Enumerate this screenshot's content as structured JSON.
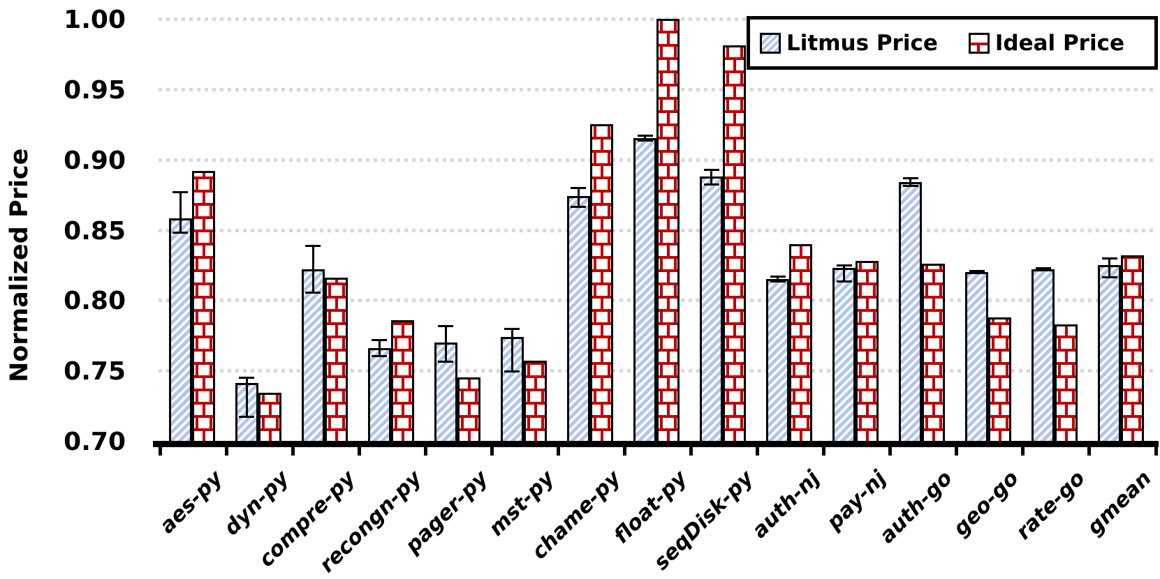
{
  "chart_data": {
    "type": "bar",
    "title": "",
    "xlabel": "",
    "ylabel": "Normalized Price",
    "ylim": [
      0.7,
      1.0
    ],
    "ytick_step": 0.05,
    "ytick_labels": [
      "1.00",
      "0.95",
      "0.90",
      "0.85",
      "0.80",
      "0.75",
      "0.70"
    ],
    "grid": "horizontal-dotted",
    "legend_position": "top-right",
    "categories": [
      "aes-py",
      "dyn-py",
      "compre-py",
      "recongn-py",
      "pager-py",
      "mst-py",
      "chame-py",
      "float-py",
      "seqDisk-py",
      "auth-nj",
      "pay-nj",
      "auth-go",
      "geo-go",
      "rate-go",
      "gmean"
    ],
    "series": [
      {
        "name": "Litmus Price",
        "style": "blue-diagonal-hatch",
        "values": [
          0.858,
          0.741,
          0.822,
          0.766,
          0.77,
          0.774,
          0.874,
          0.915,
          0.888,
          0.815,
          0.823,
          0.884,
          0.82,
          0.822,
          0.825
        ],
        "err_low": [
          0.848,
          0.717,
          0.805,
          0.76,
          0.756,
          0.749,
          0.866,
          0.913,
          0.882,
          0.813,
          0.813,
          0.881,
          0.819,
          0.821,
          0.816
        ],
        "err_high": [
          0.877,
          0.745,
          0.839,
          0.772,
          0.782,
          0.78,
          0.88,
          0.917,
          0.893,
          0.817,
          0.825,
          0.887,
          0.821,
          0.823,
          0.83
        ]
      },
      {
        "name": "Ideal Price",
        "style": "red-brick-hatch",
        "values": [
          0.892,
          0.734,
          0.816,
          0.786,
          0.745,
          0.757,
          0.925,
          1.0,
          0.981,
          0.84,
          0.828,
          0.826,
          0.788,
          0.783,
          0.832
        ]
      }
    ]
  },
  "legend": {
    "items": [
      {
        "label": "Litmus Price",
        "swatch": "blue-diagonal-hatch"
      },
      {
        "label": "Ideal Price",
        "swatch": "red-brick-hatch"
      }
    ]
  },
  "colors": {
    "litmus_stripe": "#b4c6e7",
    "brick_red": "#c00000",
    "bar_border": "#000000",
    "gridline": "#d8d8d8",
    "axis": "#000000",
    "background": "#ffffff",
    "text": "#000000"
  }
}
